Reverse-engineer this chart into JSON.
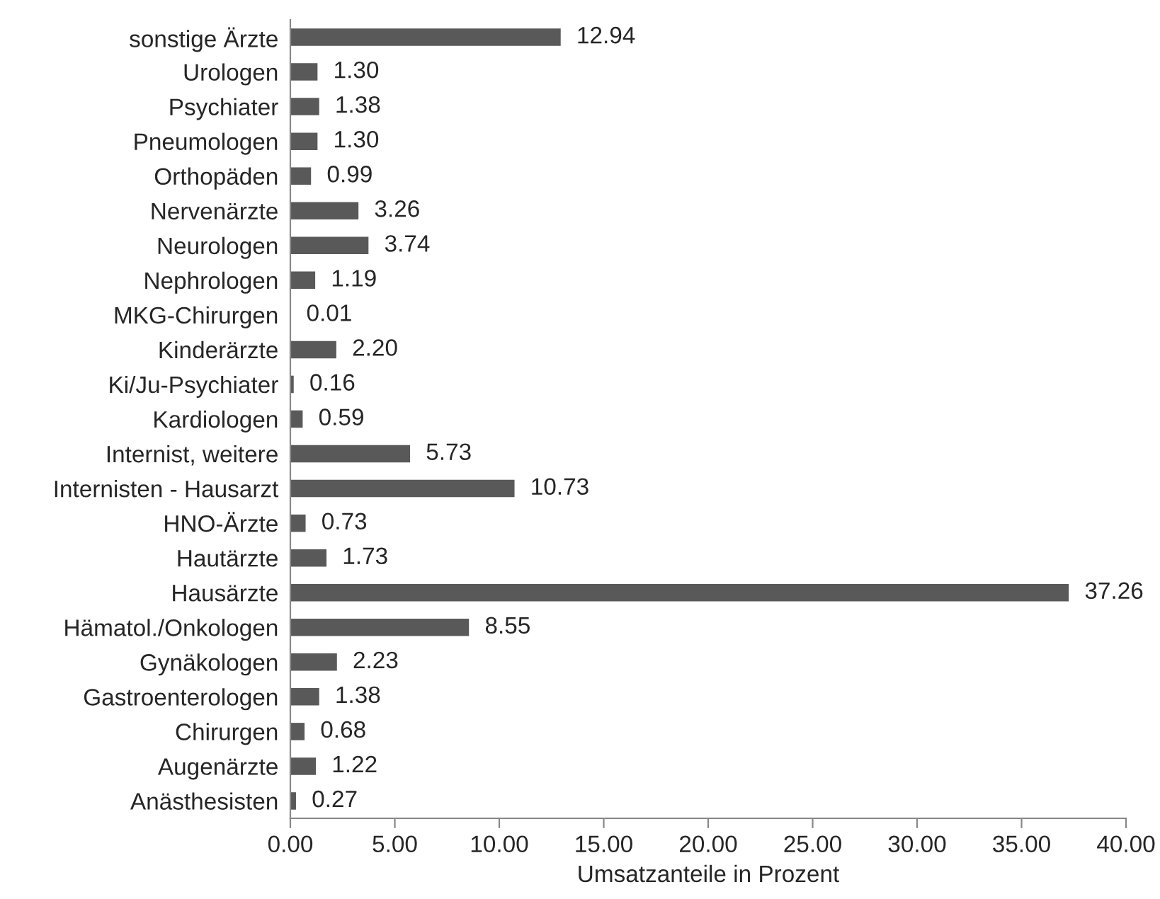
{
  "chart_data": {
    "type": "bar",
    "orientation": "horizontal",
    "xlabel": "Umsatzanteile in Prozent",
    "categories": [
      "sonstige Ärzte",
      "Urologen",
      "Psychiater",
      "Pneumologen",
      "Orthopäden",
      "Nervenärzte",
      "Neurologen",
      "Nephrologen",
      "MKG-Chirurgen",
      "Kinderärzte",
      "Ki/Ju-Psychiater",
      "Kardiologen",
      "Internist, weitere",
      "Internisten - Hausarzt",
      "HNO-Ärzte",
      "Hautärzte",
      "Hausärzte",
      "Hämatol./Onkologen",
      "Gynäkologen",
      "Gastroenterologen",
      "Chirurgen",
      "Augenärzte",
      "Anästhesisten"
    ],
    "values": [
      12.94,
      1.3,
      1.38,
      1.3,
      0.99,
      3.26,
      3.74,
      1.19,
      0.01,
      2.2,
      0.16,
      0.59,
      5.73,
      10.73,
      0.73,
      1.73,
      37.26,
      8.55,
      2.23,
      1.38,
      0.68,
      1.22,
      0.27
    ],
    "value_labels": [
      "12.94",
      "1.30",
      "1.38",
      "1.30",
      "0.99",
      "3.26",
      "3.74",
      "1.19",
      "0.01",
      "2.20",
      "0.16",
      "0.59",
      "5.73",
      "10.73",
      "0.73",
      "1.73",
      "37.26",
      "8.55",
      "2.23",
      "1.38",
      "0.68",
      "1.22",
      "0.27"
    ],
    "color": "#595959",
    "xlim": [
      0,
      40
    ],
    "xticks": [
      {
        "value": 0,
        "label": "0.00"
      },
      {
        "value": 5,
        "label": "5.00"
      },
      {
        "value": 10,
        "label": "10.00"
      },
      {
        "value": 15,
        "label": "15.00"
      },
      {
        "value": 20,
        "label": "20.00"
      },
      {
        "value": 25,
        "label": "25.00"
      },
      {
        "value": 30,
        "label": "30.00"
      },
      {
        "value": 35,
        "label": "35.00"
      },
      {
        "value": 40,
        "label": "40.00"
      }
    ],
    "grid": false,
    "legend": false
  }
}
